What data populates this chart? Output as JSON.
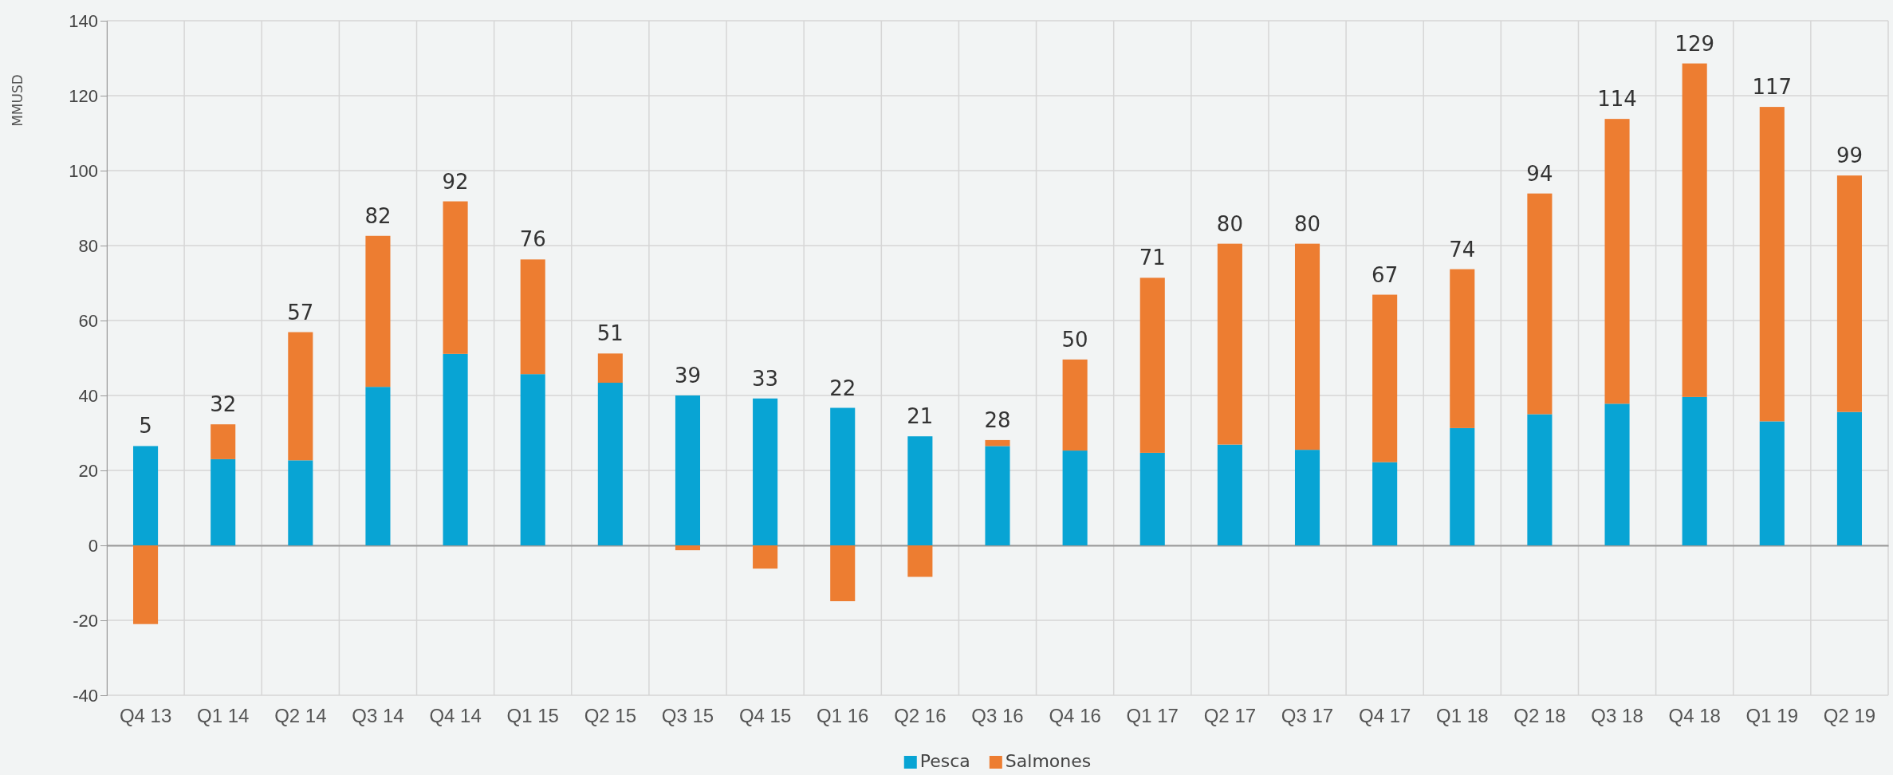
{
  "chart_data": {
    "type": "bar",
    "stacked": true,
    "ylabel": "MMUSD",
    "categories": [
      "Q4 13",
      "Q1 14",
      "Q2 14",
      "Q3 14",
      "Q4 14",
      "Q1 15",
      "Q2 15",
      "Q3 15",
      "Q4 15",
      "Q1 16",
      "Q2 16",
      "Q3 16",
      "Q4 16",
      "Q1 17",
      "Q2 17",
      "Q3 17",
      "Q4 17",
      "Q1 18",
      "Q2 18",
      "Q3 18",
      "Q4 18",
      "Q1 19",
      "Q2 19"
    ],
    "series": [
      {
        "name": "Pesca",
        "color": "#08a4d4",
        "values": [
          26.5,
          23.0,
          22.7,
          42.3,
          51.1,
          45.7,
          43.4,
          40.0,
          39.2,
          36.7,
          29.1,
          26.5,
          25.3,
          24.7,
          26.9,
          25.5,
          22.2,
          31.3,
          35.0,
          37.8,
          39.6,
          33.1,
          35.6
        ]
      },
      {
        "name": "Salmones",
        "color": "#ed7d31",
        "values": [
          -21.0,
          9.3,
          34.2,
          40.3,
          40.7,
          30.6,
          7.8,
          -1.3,
          -6.2,
          -14.9,
          -8.4,
          1.6,
          24.3,
          46.7,
          53.6,
          55.0,
          44.7,
          42.4,
          58.9,
          76.0,
          89.0,
          83.9,
          63.1
        ]
      }
    ],
    "totals": [
      "5",
      "32",
      "57",
      "82",
      "92",
      "76",
      "51",
      "39",
      "33",
      "22",
      "21",
      "28",
      "50",
      "71",
      "80",
      "80",
      "67",
      "74",
      "94",
      "114",
      "129",
      "117",
      "99"
    ],
    "ylim": [
      -40,
      140
    ],
    "yticks": [
      -40,
      -20,
      0,
      20,
      40,
      60,
      80,
      100,
      120,
      140
    ],
    "grid": true,
    "legend": "bottom"
  }
}
